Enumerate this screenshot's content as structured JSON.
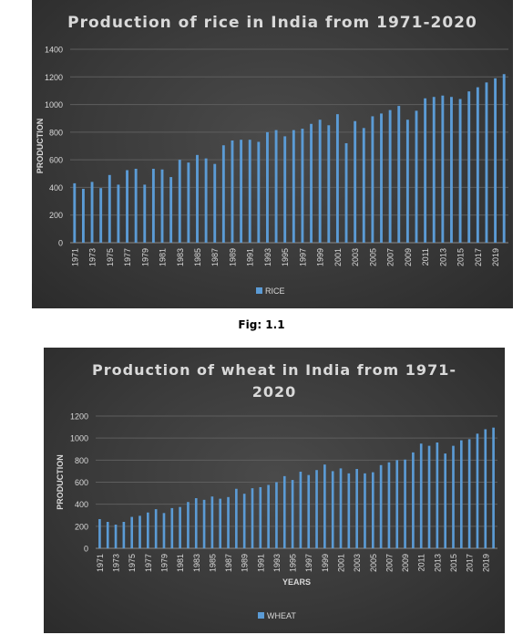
{
  "figure_caption": "Fig: 1.1",
  "chart_data": [
    {
      "type": "bar",
      "title": "Production of rice in India from 1971-2020",
      "xlabel": "",
      "ylabel": "PRODUCTION",
      "ylim": [
        0,
        1400
      ],
      "yticks": [
        0,
        200,
        400,
        600,
        800,
        1000,
        1200,
        1400
      ],
      "grid": true,
      "legend": "bottom",
      "color": "#5b9bd5",
      "categories": [
        "1971",
        "1972",
        "1973",
        "1974",
        "1975",
        "1976",
        "1977",
        "1978",
        "1979",
        "1980",
        "1981",
        "1982",
        "1983",
        "1984",
        "1985",
        "1986",
        "1987",
        "1988",
        "1989",
        "1990",
        "1991",
        "1992",
        "1993",
        "1994",
        "1995",
        "1996",
        "1997",
        "1998",
        "1999",
        "2000",
        "2001",
        "2002",
        "2003",
        "2004",
        "2005",
        "2006",
        "2007",
        "2008",
        "2009",
        "2010",
        "2011",
        "2012",
        "2013",
        "2014",
        "2015",
        "2016",
        "2017",
        "2018",
        "2019",
        "2020"
      ],
      "series": [
        {
          "name": "RICE",
          "values": [
            430,
            390,
            440,
            395,
            490,
            420,
            525,
            535,
            420,
            535,
            530,
            475,
            600,
            580,
            635,
            610,
            570,
            705,
            740,
            745,
            745,
            730,
            800,
            815,
            770,
            815,
            825,
            860,
            890,
            850,
            930,
            720,
            880,
            830,
            915,
            935,
            960,
            990,
            890,
            955,
            1045,
            1055,
            1065,
            1055,
            1040,
            1095,
            1125,
            1160,
            1190,
            1220
          ]
        }
      ]
    },
    {
      "type": "bar",
      "title": "Production of wheat in India from 1971-2020",
      "xlabel": "YEARS",
      "ylabel": "PRODUCTION",
      "ylim": [
        0,
        1200
      ],
      "yticks": [
        0,
        200,
        400,
        600,
        800,
        1000,
        1200
      ],
      "grid": true,
      "legend": "bottom",
      "color": "#5b9bd5",
      "categories": [
        "1971",
        "1972",
        "1973",
        "1974",
        "1975",
        "1976",
        "1977",
        "1978",
        "1979",
        "1980",
        "1981",
        "1982",
        "1983",
        "1984",
        "1985",
        "1986",
        "1987",
        "1988",
        "1989",
        "1990",
        "1991",
        "1992",
        "1993",
        "1994",
        "1995",
        "1996",
        "1997",
        "1998",
        "1999",
        "2000",
        "2001",
        "2002",
        "2003",
        "2004",
        "2005",
        "2006",
        "2007",
        "2008",
        "2009",
        "2010",
        "2011",
        "2012",
        "2013",
        "2014",
        "2015",
        "2016",
        "2017",
        "2018",
        "2019",
        "2020"
      ],
      "series": [
        {
          "name": "WHEAT",
          "values": [
            265,
            240,
            215,
            240,
            285,
            295,
            325,
            355,
            320,
            365,
            375,
            420,
            455,
            440,
            470,
            450,
            465,
            540,
            495,
            545,
            555,
            575,
            600,
            655,
            620,
            695,
            665,
            710,
            760,
            700,
            725,
            680,
            720,
            680,
            690,
            755,
            780,
            800,
            805,
            870,
            950,
            930,
            960,
            860,
            930,
            980,
            990,
            1040,
            1080,
            1095
          ]
        }
      ]
    }
  ]
}
